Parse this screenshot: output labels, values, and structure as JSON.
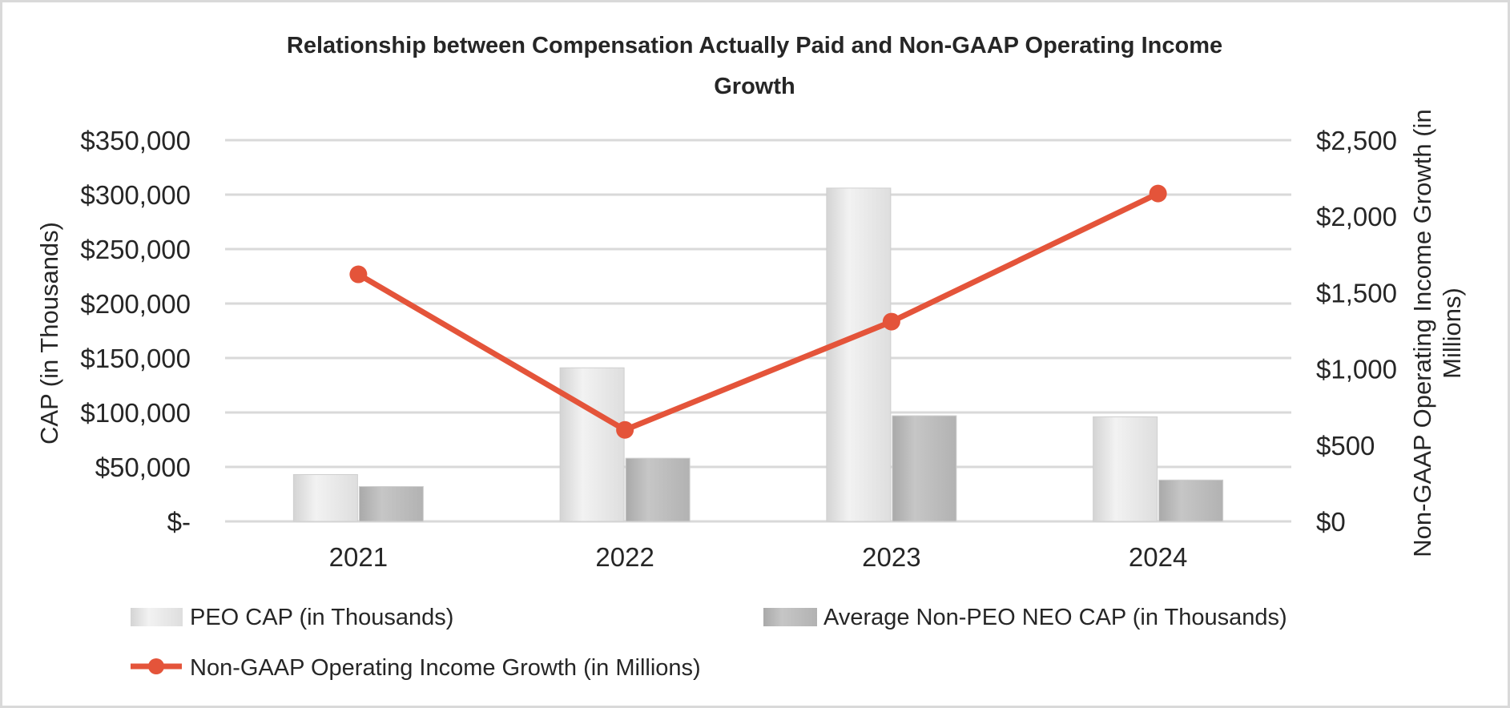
{
  "chart_data": {
    "type": "bar",
    "title": "Relationship between Compensation Actually Paid and Non-GAAP Operating Income Growth",
    "title_lines": [
      "Relationship between Compensation Actually Paid and Non-GAAP Operating Income",
      "Growth"
    ],
    "categories": [
      "2021",
      "2022",
      "2023",
      "2024"
    ],
    "series": [
      {
        "name": "PEO CAP (in Thousands)",
        "kind": "bar",
        "axis": "left",
        "color": "#e3e3e3",
        "values": [
          43000,
          141000,
          306000,
          96000
        ]
      },
      {
        "name": "Average Non-PEO NEO CAP (in Thousands)",
        "kind": "bar",
        "axis": "left",
        "color": "#b9b9b9",
        "values": [
          32000,
          58000,
          97000,
          38000
        ]
      },
      {
        "name": "Non-GAAP Operating Income Growth (in Millions)",
        "kind": "line",
        "axis": "right",
        "color": "#e4543a",
        "values": [
          1620,
          600,
          1310,
          2150
        ]
      }
    ],
    "y_left": {
      "label": "CAP (in Thousands)",
      "range": [
        0,
        350000
      ],
      "ticks": [
        0,
        50000,
        100000,
        150000,
        200000,
        250000,
        300000,
        350000
      ],
      "tick_labels": [
        "$-",
        "$50,000",
        "$100,000",
        "$150,000",
        "$200,000",
        "$250,000",
        "$300,000",
        "$350,000"
      ]
    },
    "y_right": {
      "label_lines": [
        "Non-GAAP Operating Income Growth (in",
        "Millions)"
      ],
      "range": [
        0,
        2500
      ],
      "ticks": [
        0,
        500,
        1000,
        1500,
        2000,
        2500
      ],
      "tick_labels": [
        "$0",
        "$500",
        "$1,000",
        "$1,500",
        "$2,000",
        "$2,500"
      ]
    },
    "grid": true,
    "legend": {
      "position": "bottom",
      "items": [
        "PEO CAP (in Thousands)",
        "Average Non-PEO NEO CAP (in Thousands)",
        "Non-GAAP Operating Income Growth (in Millions)"
      ]
    }
  }
}
